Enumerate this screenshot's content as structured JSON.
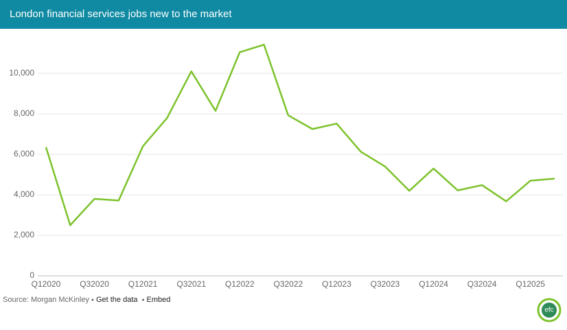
{
  "chart_data": {
    "type": "line",
    "title": "London financial services jobs new to the market",
    "categories": [
      "Q12020",
      null,
      "Q32020",
      null,
      "Q12021",
      null,
      "Q32021",
      null,
      "Q12022",
      null,
      "Q32022",
      null,
      "Q12023",
      null,
      "Q32023",
      null,
      "Q12024",
      null,
      "Q32024",
      null,
      "Q12025",
      null
    ],
    "values": [
      6350,
      2500,
      3800,
      3720,
      6400,
      7800,
      10100,
      8150,
      11050,
      11420,
      7930,
      7250,
      7520,
      6130,
      5400,
      4200,
      5300,
      4220,
      4480,
      3680,
      4700,
      4800
    ],
    "color": "#7cc22a",
    "ylim": [
      0,
      12000
    ],
    "yticks": [
      0,
      {
        "value": 2000,
        "label": "2,000"
      },
      {
        "value": 4000,
        "label": "4,000"
      },
      {
        "value": 6000,
        "label": "6,000"
      },
      {
        "value": 8000,
        "label": "8,000"
      },
      {
        "value": 10000,
        "label": "10,000"
      }
    ],
    "grid": true,
    "source": "Source: Morgan McKinley",
    "links": [
      "Get the data",
      "Embed"
    ],
    "logo": "efc"
  }
}
